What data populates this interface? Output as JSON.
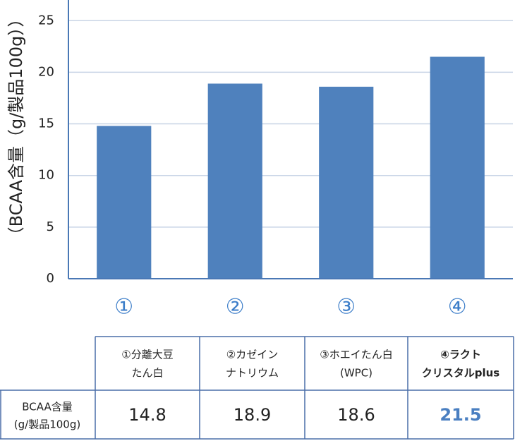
{
  "chart_data": {
    "type": "bar",
    "y_axis_label": "（BCAA含量（g/製品100g））",
    "categories": [
      "①",
      "②",
      "③",
      "④"
    ],
    "values": [
      14.8,
      18.9,
      18.6,
      21.5
    ],
    "color": "#4f81bd",
    "ylim": [
      0,
      27
    ],
    "yticks": [
      0,
      5,
      10,
      15,
      20,
      25
    ],
    "grid": true
  },
  "table": {
    "columns": [
      [
        "①分離大豆",
        "たん白"
      ],
      [
        "②カゼイン",
        "ナトリウム"
      ],
      [
        "③ホエイたん白",
        "(WPC)"
      ],
      [
        "④ラクト",
        "クリスタルplus"
      ]
    ],
    "row_label": [
      "BCAA含量",
      "(g/製品100g)"
    ]
  }
}
